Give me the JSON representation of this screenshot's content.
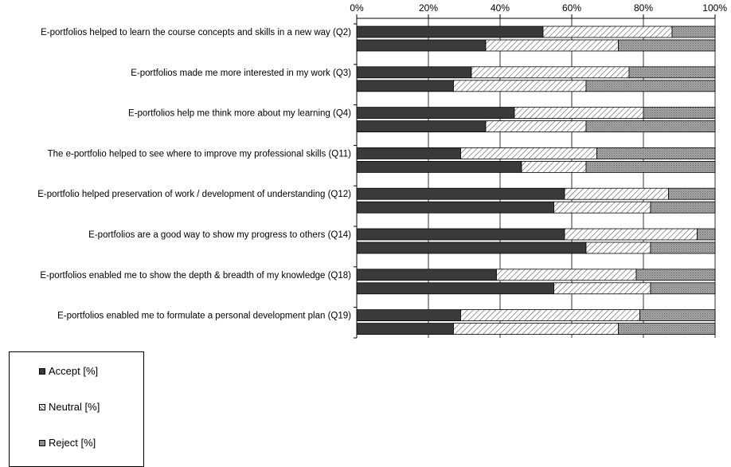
{
  "chart_data": {
    "type": "bar",
    "orientation": "horizontal",
    "stacked": "percent",
    "xlim": [
      0,
      100
    ],
    "x_ticks": [
      "0%",
      "20%",
      "40%",
      "60%",
      "80%",
      "100%"
    ],
    "grid": "vertical",
    "legend_position": "bottom-left",
    "categories": [
      "E-portfolios helped to learn the course concepts and skills in a new way (Q2)",
      "E-portfolios made me more interested in my work (Q3)",
      "E-portfolios help me think more about my learning (Q4)",
      "The e-portfolio helped to see where to improve my professional skills (Q11)",
      "E-portfolio helped preservation of work / development of understanding (Q12)",
      "E-portfolios are a good way to show my progress to others (Q14)",
      "E-portfolios enabled me to show the depth & breadth of my knowledge (Q18)",
      "E-portfolios enabled me to formulate a personal development plan (Q19)"
    ],
    "bars_per_category": 2,
    "series": [
      {
        "name": "Accept [%]",
        "color": "#3a3a3a",
        "pattern": "solid",
        "values": [
          [
            52,
            36
          ],
          [
            32,
            27
          ],
          [
            44,
            36
          ],
          [
            29,
            46
          ],
          [
            58,
            55
          ],
          [
            58,
            64
          ],
          [
            39,
            55
          ],
          [
            29,
            27
          ]
        ]
      },
      {
        "name": "Neutral [%]",
        "color": "#ffffff",
        "pattern": "diagonal-hatch",
        "values": [
          [
            36,
            37
          ],
          [
            44,
            37
          ],
          [
            36,
            28
          ],
          [
            38,
            18
          ],
          [
            29,
            27
          ],
          [
            37,
            18
          ],
          [
            39,
            27
          ],
          [
            50,
            46
          ]
        ]
      },
      {
        "name": "Reject [%]",
        "color": "#9a9a9a",
        "pattern": "dotted",
        "values": [
          [
            12,
            27
          ],
          [
            24,
            36
          ],
          [
            20,
            36
          ],
          [
            33,
            36
          ],
          [
            13,
            18
          ],
          [
            5,
            18
          ],
          [
            22,
            18
          ],
          [
            21,
            27
          ]
        ]
      }
    ]
  }
}
